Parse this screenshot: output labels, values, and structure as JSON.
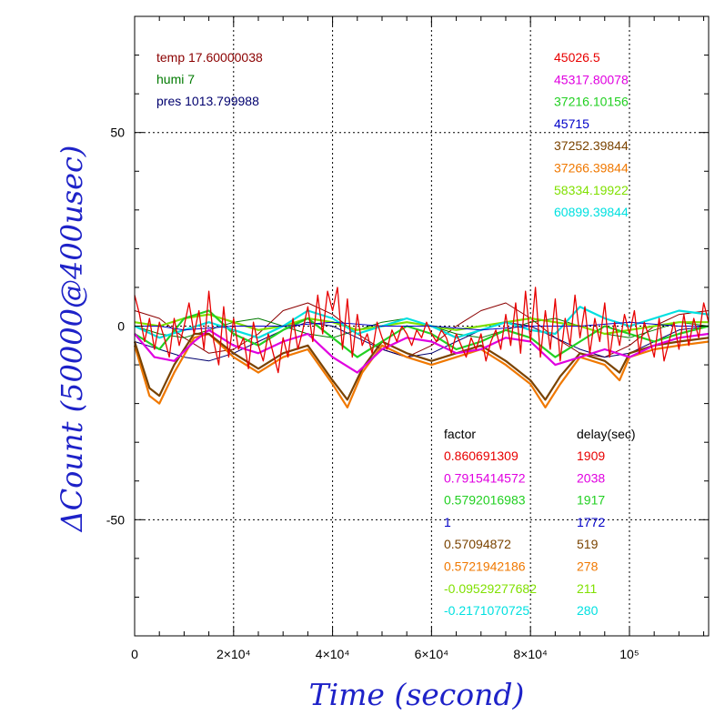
{
  "chart_data": {
    "type": "line",
    "xlabel": "Time (second)",
    "ylabel": "ΔCount (50000@400usec)",
    "xlim": [
      0,
      116000
    ],
    "ylim": [
      -80,
      80
    ],
    "grid": true,
    "x_ticks": [
      {
        "value": 0,
        "label": "0"
      },
      {
        "value": 20000,
        "label": "2×10⁴"
      },
      {
        "value": 40000,
        "label": "4×10⁴"
      },
      {
        "value": 60000,
        "label": "6×10⁴"
      },
      {
        "value": 80000,
        "label": "8×10⁴"
      },
      {
        "value": 100000,
        "label": "10⁵"
      }
    ],
    "y_ticks": [
      {
        "value": 50,
        "label": "50"
      },
      {
        "value": 0,
        "label": "0"
      },
      {
        "value": -50,
        "label": "-50"
      }
    ],
    "env_legend": [
      {
        "text": "temp 17.60000038",
        "color": "#8b0000"
      },
      {
        "text": "humi 7",
        "color": "#007a00"
      },
      {
        "text": "pres 1013.799988",
        "color": "#00006e"
      }
    ],
    "station_legend": [
      {
        "text": "45026.5",
        "color": "#e80000"
      },
      {
        "text": "45317.80078",
        "color": "#e000e0"
      },
      {
        "text": "37216.10156",
        "color": "#22d022"
      },
      {
        "text": "45715",
        "color": "#0000c8"
      },
      {
        "text": "37252.39844",
        "color": "#7a4300"
      },
      {
        "text": "37266.39844",
        "color": "#f07800"
      },
      {
        "text": "58334.19922",
        "color": "#80e000"
      },
      {
        "text": "60899.39844",
        "color": "#00e0e0"
      }
    ],
    "factor_header": "factor",
    "delay_header": "delay(sec)",
    "factor_table": [
      {
        "factor": "0.860691309",
        "delay": "1909",
        "color": "#e80000"
      },
      {
        "factor": "0.7915414572",
        "delay": "2038",
        "color": "#e000e0"
      },
      {
        "factor": "0.5792016983",
        "delay": "1917",
        "color": "#22d022"
      },
      {
        "factor": "1",
        "delay": "1772",
        "color": "#0000c8"
      },
      {
        "factor": "0.57094872",
        "delay": "519",
        "color": "#7a4300"
      },
      {
        "factor": "0.5721942186",
        "delay": "278",
        "color": "#f07800"
      },
      {
        "factor": "-0.09529277682",
        "delay": "211",
        "color": "#80e000"
      },
      {
        "factor": "-0.2171070725",
        "delay": "280",
        "color": "#00e0e0"
      }
    ],
    "series": [
      {
        "color": "#8b0000",
        "x": [
          0,
          5000,
          10000,
          15000,
          20000,
          25000,
          30000,
          35000,
          40000,
          45000,
          50000,
          55000,
          60000,
          65000,
          70000,
          75000,
          80000,
          85000,
          90000,
          95000,
          100000,
          105000,
          110000,
          116000
        ],
        "y": [
          4,
          2,
          -3,
          -7,
          -6,
          -2,
          4,
          6,
          3,
          -2,
          -6,
          -8,
          -5,
          0,
          4,
          6,
          2,
          -3,
          -7,
          -8,
          -5,
          0,
          3,
          4
        ]
      },
      {
        "color": "#007a00",
        "x": [
          0,
          5000,
          10000,
          15000,
          20000,
          25000,
          30000,
          35000,
          40000,
          45000,
          50000,
          55000,
          60000,
          65000,
          70000,
          75000,
          80000,
          85000,
          90000,
          95000,
          100000,
          105000,
          110000,
          116000
        ],
        "y": [
          0,
          -2,
          -3,
          -1,
          1,
          2,
          0,
          -2,
          -3,
          -1,
          1,
          2,
          0,
          -2,
          -3,
          -1,
          1,
          2,
          0,
          -2,
          -3,
          -1,
          1,
          0
        ]
      },
      {
        "color": "#00006e",
        "x": [
          0,
          5000,
          10000,
          15000,
          20000,
          25000,
          30000,
          35000,
          40000,
          45000,
          50000,
          55000,
          60000,
          65000,
          70000,
          75000,
          80000,
          85000,
          90000,
          95000,
          100000,
          105000,
          110000,
          116000
        ],
        "y": [
          -4,
          -6,
          -8,
          -9,
          -7,
          -4,
          -1,
          1,
          0,
          -3,
          -6,
          -8,
          -7,
          -4,
          -1,
          1,
          0,
          -3,
          -6,
          -8,
          -7,
          -4,
          -1,
          0
        ]
      },
      {
        "color": "#f07800",
        "x": [
          0,
          3000,
          5000,
          8000,
          12000,
          15000,
          20000,
          25000,
          30000,
          35000,
          40000,
          43000,
          46000,
          50000,
          55000,
          60000,
          65000,
          70000,
          75000,
          80000,
          83000,
          86000,
          90000,
          95000,
          98000,
          100000,
          105000,
          110000,
          116000
        ],
        "y": [
          -5,
          -18,
          -20,
          -12,
          -3,
          -2,
          -8,
          -12,
          -8,
          -6,
          -15,
          -21,
          -12,
          -5,
          -8,
          -10,
          -8,
          -6,
          -10,
          -15,
          -21,
          -15,
          -8,
          -10,
          -14,
          -8,
          -6,
          -5,
          -4
        ]
      },
      {
        "color": "#7a4300",
        "x": [
          0,
          3000,
          5000,
          8000,
          12000,
          15000,
          20000,
          25000,
          30000,
          35000,
          40000,
          43000,
          46000,
          50000,
          55000,
          60000,
          65000,
          70000,
          75000,
          80000,
          83000,
          86000,
          90000,
          95000,
          98000,
          100000,
          105000,
          110000,
          116000
        ],
        "y": [
          -4,
          -16,
          -18,
          -10,
          -2,
          -2,
          -7,
          -11,
          -7,
          -5,
          -14,
          -19,
          -11,
          -4,
          -7,
          -9,
          -7,
          -5,
          -9,
          -14,
          -19,
          -13,
          -7,
          -9,
          -12,
          -7,
          -5,
          -4,
          -3
        ]
      },
      {
        "color": "#80e000",
        "x": [
          0,
          5000,
          10000,
          15000,
          20000,
          25000,
          30000,
          35000,
          40000,
          45000,
          50000,
          55000,
          60000,
          65000,
          70000,
          75000,
          80000,
          85000,
          90000,
          95000,
          100000,
          105000,
          110000,
          116000
        ],
        "y": [
          1,
          0,
          2,
          3,
          1,
          -1,
          0,
          2,
          1,
          -1,
          0,
          1,
          0,
          -1,
          0,
          1,
          2,
          1,
          0,
          -2,
          -1,
          0,
          1,
          1
        ]
      },
      {
        "color": "#22d022",
        "x": [
          0,
          5000,
          10000,
          15000,
          20000,
          25000,
          30000,
          35000,
          40000,
          45000,
          50000,
          55000,
          60000,
          65000,
          70000,
          75000,
          80000,
          85000,
          90000,
          95000,
          100000,
          105000,
          110000,
          116000
        ],
        "y": [
          -2,
          -6,
          2,
          4,
          -2,
          -5,
          -1,
          2,
          -3,
          -8,
          -4,
          0,
          -2,
          -6,
          -4,
          -1,
          -3,
          -8,
          -4,
          0,
          -2,
          -4,
          -2,
          0
        ]
      },
      {
        "color": "#00e0e0",
        "x": [
          0,
          5000,
          10000,
          15000,
          20000,
          25000,
          30000,
          35000,
          40000,
          45000,
          50000,
          55000,
          60000,
          65000,
          70000,
          75000,
          80000,
          85000,
          90000,
          95000,
          100000,
          105000,
          110000,
          116000
        ],
        "y": [
          0,
          -3,
          -1,
          1,
          -1,
          -3,
          0,
          4,
          2,
          -2,
          0,
          2,
          0,
          -3,
          -1,
          1,
          -1,
          -2,
          5,
          2,
          0,
          2,
          4,
          3
        ]
      },
      {
        "color": "#e000e0",
        "x": [
          0,
          4000,
          8000,
          12000,
          15000,
          20000,
          25000,
          30000,
          35000,
          40000,
          45000,
          50000,
          55000,
          60000,
          65000,
          70000,
          75000,
          80000,
          85000,
          90000,
          95000,
          100000,
          105000,
          110000,
          116000
        ],
        "y": [
          -2,
          -8,
          -9,
          -4,
          -1,
          -5,
          -7,
          -4,
          -2,
          -8,
          -12,
          -6,
          -3,
          -4,
          -7,
          -6,
          -3,
          -4,
          -10,
          -8,
          -6,
          -8,
          -5,
          -3,
          -2
        ]
      },
      {
        "color": "#0000c8",
        "x": [
          0,
          5000,
          10000,
          20000,
          30000,
          40000,
          50000,
          60000,
          70000,
          80000,
          90000,
          100000,
          110000,
          116000
        ],
        "y": [
          0,
          0,
          -1,
          0,
          0,
          1,
          0,
          0,
          -1,
          0,
          0,
          1,
          0,
          0
        ]
      },
      {
        "color": "#e80000",
        "x": [
          0,
          1000,
          2000,
          3000,
          4000,
          5000,
          6000,
          7000,
          8000,
          9000,
          10000,
          11000,
          12000,
          13000,
          14000,
          15000,
          16000,
          17000,
          18000,
          19000,
          20000,
          21000,
          22000,
          23000,
          24000,
          25000,
          26000,
          27000,
          28000,
          29000,
          30000,
          31000,
          32000,
          33000,
          34000,
          35000,
          36000,
          37000,
          38000,
          39000,
          40000,
          41000,
          42000,
          43000,
          44000,
          45000,
          46000,
          47000,
          48000,
          49000,
          50000,
          51000,
          52000,
          53000,
          54000,
          55000,
          56000,
          57000,
          58000,
          59000,
          60000,
          61000,
          62000,
          63000,
          64000,
          65000,
          66000,
          67000,
          68000,
          69000,
          70000,
          71000,
          72000,
          73000,
          74000,
          75000,
          76000,
          77000,
          78000,
          79000,
          80000,
          81000,
          82000,
          83000,
          84000,
          85000,
          86000,
          87000,
          88000,
          89000,
          90000,
          91000,
          92000,
          93000,
          94000,
          95000,
          96000,
          97000,
          98000,
          99000,
          100000,
          101000,
          102000,
          103000,
          104000,
          105000,
          106000,
          107000,
          108000,
          109000,
          110000,
          111000,
          112000,
          113000,
          114000,
          115000,
          116000
        ],
        "y": [
          8,
          3,
          -4,
          2,
          -6,
          1,
          -3,
          -8,
          2,
          -5,
          0,
          6,
          -2,
          4,
          -6,
          9,
          -4,
          -10,
          5,
          -8,
          2,
          -6,
          -3,
          -11,
          1,
          -5,
          -9,
          -2,
          -7,
          -12,
          -3,
          -8,
          2,
          -6,
          -1,
          5,
          -4,
          8,
          -2,
          9,
          4,
          10,
          -6,
          7,
          -8,
          3,
          -5,
          -2,
          -7,
          1,
          -3,
          -6,
          -1,
          -4,
          0,
          -2,
          -5,
          -1,
          -3,
          1,
          -2,
          -4,
          -1,
          -3,
          -7,
          -2,
          -5,
          -8,
          -3,
          -6,
          -2,
          -9,
          -4,
          -1,
          -6,
          3,
          -5,
          6,
          -7,
          9,
          -4,
          10,
          -8,
          4,
          -6,
          7,
          -9,
          2,
          -5,
          8,
          -3,
          5,
          -7,
          2,
          -4,
          6,
          -8,
          1,
          -5,
          3,
          -2,
          4,
          -7,
          1,
          -3,
          -8,
          2,
          -9,
          -4,
          1,
          -6,
          3,
          -5,
          2,
          -3,
          6,
          1
        ]
      }
    ]
  }
}
